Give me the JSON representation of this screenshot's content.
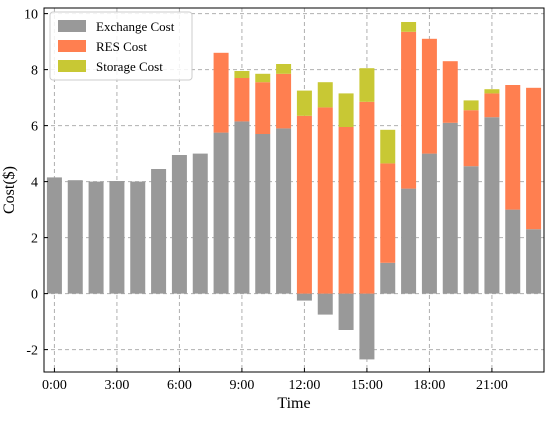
{
  "chart_data": {
    "type": "bar",
    "stacked": true,
    "xlabel": "Time",
    "ylabel": "Cost($)",
    "ylim": [
      -2.8,
      10.2
    ],
    "yticks": [
      -2,
      0,
      2,
      4,
      6,
      8,
      10
    ],
    "xtick_labels": [
      "0:00",
      "3:00",
      "6:00",
      "9:00",
      "12:00",
      "15:00",
      "18:00",
      "21:00"
    ],
    "xtick_hours": [
      0,
      3,
      6,
      9,
      12,
      15,
      18,
      21
    ],
    "grid": true,
    "legend_position": "top-left",
    "x": [
      0,
      1,
      2,
      3,
      4,
      5,
      6,
      7,
      8,
      9,
      10,
      11,
      12,
      13,
      14,
      15,
      16,
      17,
      18,
      19,
      20,
      21,
      22,
      23
    ],
    "series": [
      {
        "name": "Exchange Cost",
        "color": "#999999",
        "values": [
          4.15,
          4.05,
          4.0,
          4.02,
          4.0,
          4.45,
          4.95,
          5.0,
          5.75,
          6.15,
          5.7,
          5.9,
          -0.25,
          -0.75,
          -1.3,
          -2.35,
          1.1,
          3.75,
          5.0,
          6.1,
          4.55,
          6.3,
          3.0,
          2.3
        ]
      },
      {
        "name": "RES Cost",
        "color": "#ff7f50",
        "values": [
          0,
          0,
          0,
          0,
          0,
          0,
          0,
          0,
          2.85,
          1.55,
          1.85,
          1.95,
          6.35,
          6.65,
          5.95,
          6.85,
          3.55,
          5.6,
          4.1,
          2.2,
          2.0,
          0.85,
          4.45,
          5.05
        ]
      },
      {
        "name": "Storage Cost",
        "color": "#c8c834",
        "values": [
          0,
          0,
          0,
          0,
          0,
          0,
          0,
          0,
          0,
          0.25,
          0.3,
          0.35,
          0.9,
          0.9,
          1.2,
          1.2,
          1.2,
          0.35,
          0,
          0,
          0.35,
          0.15,
          0,
          0
        ]
      }
    ]
  }
}
